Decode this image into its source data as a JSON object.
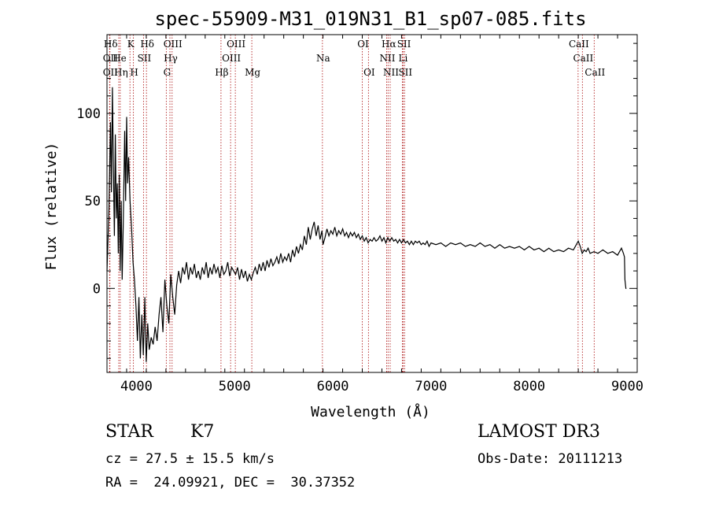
{
  "chart_data": {
    "type": "line",
    "title": "spec-55909-M31_019N31_B1_sp07-085.fits",
    "xlabel": "Wavelength (Å)",
    "ylabel": "Flux (relative)",
    "xlim": [
      3700,
      9100
    ],
    "ylim": [
      -48,
      145
    ],
    "x_ticks": [
      4000,
      5000,
      6000,
      7000,
      8000,
      9000
    ],
    "y_ticks": [
      0,
      50,
      100
    ],
    "grid": false,
    "series": [
      {
        "points": [
          [
            3700,
            10
          ],
          [
            3720,
            45
          ],
          [
            3735,
            95
          ],
          [
            3745,
            55
          ],
          [
            3755,
            115
          ],
          [
            3765,
            70
          ],
          [
            3775,
            30
          ],
          [
            3785,
            88
          ],
          [
            3795,
            40
          ],
          [
            3805,
            60
          ],
          [
            3815,
            20
          ],
          [
            3825,
            65
          ],
          [
            3835,
            10
          ],
          [
            3845,
            50
          ],
          [
            3855,
            5
          ],
          [
            3865,
            35
          ],
          [
            3880,
            90
          ],
          [
            3890,
            50
          ],
          [
            3900,
            98
          ],
          [
            3910,
            60
          ],
          [
            3920,
            75
          ],
          [
            3935,
            50
          ],
          [
            3950,
            35
          ],
          [
            3965,
            15
          ],
          [
            3980,
            5
          ],
          [
            3995,
            -10
          ],
          [
            4010,
            -30
          ],
          [
            4025,
            -5
          ],
          [
            4040,
            -40
          ],
          [
            4055,
            -15
          ],
          [
            4070,
            -38
          ],
          [
            4085,
            -5
          ],
          [
            4100,
            -42
          ],
          [
            4115,
            -20
          ],
          [
            4130,
            -35
          ],
          [
            4150,
            -28
          ],
          [
            4170,
            -32
          ],
          [
            4190,
            -22
          ],
          [
            4210,
            -30
          ],
          [
            4230,
            -15
          ],
          [
            4250,
            -5
          ],
          [
            4270,
            -25
          ],
          [
            4290,
            5
          ],
          [
            4310,
            -10
          ],
          [
            4330,
            -20
          ],
          [
            4350,
            8
          ],
          [
            4370,
            -5
          ],
          [
            4390,
            -15
          ],
          [
            4410,
            2
          ],
          [
            4430,
            10
          ],
          [
            4450,
            3
          ],
          [
            4470,
            12
          ],
          [
            4490,
            8
          ],
          [
            4510,
            15
          ],
          [
            4530,
            5
          ],
          [
            4550,
            12
          ],
          [
            4570,
            8
          ],
          [
            4590,
            14
          ],
          [
            4610,
            6
          ],
          [
            4630,
            10
          ],
          [
            4650,
            5
          ],
          [
            4670,
            12
          ],
          [
            4690,
            8
          ],
          [
            4710,
            15
          ],
          [
            4730,
            6
          ],
          [
            4750,
            12
          ],
          [
            4770,
            8
          ],
          [
            4790,
            14
          ],
          [
            4810,
            9
          ],
          [
            4830,
            12
          ],
          [
            4850,
            6
          ],
          [
            4870,
            13
          ],
          [
            4890,
            8
          ],
          [
            4910,
            10
          ],
          [
            4930,
            15
          ],
          [
            4950,
            7
          ],
          [
            4970,
            12
          ],
          [
            4990,
            10
          ],
          [
            5010,
            8
          ],
          [
            5030,
            12
          ],
          [
            5050,
            5
          ],
          [
            5070,
            11
          ],
          [
            5090,
            6
          ],
          [
            5110,
            10
          ],
          [
            5130,
            4
          ],
          [
            5150,
            8
          ],
          [
            5170,
            5
          ],
          [
            5190,
            9
          ],
          [
            5210,
            12
          ],
          [
            5230,
            8
          ],
          [
            5250,
            14
          ],
          [
            5270,
            10
          ],
          [
            5290,
            15
          ],
          [
            5310,
            10
          ],
          [
            5330,
            16
          ],
          [
            5350,
            12
          ],
          [
            5370,
            17
          ],
          [
            5390,
            13
          ],
          [
            5410,
            15
          ],
          [
            5430,
            18
          ],
          [
            5450,
            14
          ],
          [
            5470,
            20
          ],
          [
            5490,
            15
          ],
          [
            5510,
            18
          ],
          [
            5530,
            16
          ],
          [
            5550,
            20
          ],
          [
            5570,
            15
          ],
          [
            5590,
            22
          ],
          [
            5610,
            18
          ],
          [
            5630,
            24
          ],
          [
            5650,
            20
          ],
          [
            5670,
            25
          ],
          [
            5690,
            22
          ],
          [
            5710,
            30
          ],
          [
            5730,
            25
          ],
          [
            5750,
            35
          ],
          [
            5770,
            28
          ],
          [
            5790,
            34
          ],
          [
            5810,
            38
          ],
          [
            5830,
            30
          ],
          [
            5850,
            36
          ],
          [
            5870,
            28
          ],
          [
            5890,
            33
          ],
          [
            5900,
            25
          ],
          [
            5920,
            29
          ],
          [
            5940,
            34
          ],
          [
            5960,
            30
          ],
          [
            5980,
            33
          ],
          [
            6000,
            31
          ],
          [
            6020,
            35
          ],
          [
            6040,
            30
          ],
          [
            6060,
            33
          ],
          [
            6080,
            31
          ],
          [
            6100,
            34
          ],
          [
            6120,
            30
          ],
          [
            6140,
            32
          ],
          [
            6160,
            29
          ],
          [
            6180,
            32
          ],
          [
            6200,
            30
          ],
          [
            6220,
            32
          ],
          [
            6240,
            29
          ],
          [
            6260,
            31
          ],
          [
            6280,
            28
          ],
          [
            6300,
            30
          ],
          [
            6320,
            27
          ],
          [
            6340,
            29
          ],
          [
            6360,
            26
          ],
          [
            6380,
            28
          ],
          [
            6400,
            27
          ],
          [
            6420,
            29
          ],
          [
            6440,
            27
          ],
          [
            6460,
            28
          ],
          [
            6480,
            30
          ],
          [
            6500,
            27
          ],
          [
            6520,
            29
          ],
          [
            6540,
            26
          ],
          [
            6560,
            29
          ],
          [
            6580,
            27
          ],
          [
            6600,
            29
          ],
          [
            6620,
            27
          ],
          [
            6640,
            28
          ],
          [
            6660,
            26
          ],
          [
            6680,
            28
          ],
          [
            6700,
            26
          ],
          [
            6720,
            28
          ],
          [
            6740,
            26
          ],
          [
            6760,
            27
          ],
          [
            6780,
            25
          ],
          [
            6800,
            27
          ],
          [
            6820,
            25
          ],
          [
            6840,
            27
          ],
          [
            6860,
            26
          ],
          [
            6880,
            27
          ],
          [
            6900,
            25
          ],
          [
            6920,
            26
          ],
          [
            6940,
            25
          ],
          [
            6960,
            27
          ],
          [
            6980,
            24
          ],
          [
            7000,
            26
          ],
          [
            7050,
            25
          ],
          [
            7100,
            26
          ],
          [
            7150,
            24
          ],
          [
            7200,
            26
          ],
          [
            7250,
            25
          ],
          [
            7300,
            26
          ],
          [
            7350,
            24
          ],
          [
            7400,
            25
          ],
          [
            7450,
            24
          ],
          [
            7500,
            26
          ],
          [
            7550,
            24
          ],
          [
            7600,
            25
          ],
          [
            7650,
            23
          ],
          [
            7700,
            25
          ],
          [
            7750,
            23
          ],
          [
            7800,
            24
          ],
          [
            7850,
            23
          ],
          [
            7900,
            24
          ],
          [
            7950,
            22
          ],
          [
            8000,
            24
          ],
          [
            8050,
            22
          ],
          [
            8100,
            23
          ],
          [
            8150,
            21
          ],
          [
            8200,
            23
          ],
          [
            8250,
            21
          ],
          [
            8300,
            22
          ],
          [
            8350,
            21
          ],
          [
            8400,
            23
          ],
          [
            8450,
            22
          ],
          [
            8480,
            25
          ],
          [
            8500,
            27
          ],
          [
            8520,
            24
          ],
          [
            8540,
            20
          ],
          [
            8560,
            22
          ],
          [
            8580,
            21
          ],
          [
            8600,
            23
          ],
          [
            8620,
            20
          ],
          [
            8660,
            21
          ],
          [
            8700,
            20
          ],
          [
            8750,
            22
          ],
          [
            8800,
            20
          ],
          [
            8850,
            21
          ],
          [
            8900,
            19
          ],
          [
            8940,
            23
          ],
          [
            8960,
            20
          ],
          [
            8970,
            18
          ],
          [
            8975,
            5
          ],
          [
            8985,
            0
          ],
          [
            8990,
            0
          ]
        ]
      }
    ],
    "line_markers": [
      {
        "label": "Hδ",
        "wavelength": 3730,
        "row": 0
      },
      {
        "label": "OII",
        "wavelength": 3727,
        "row": 1
      },
      {
        "label": "OII",
        "wavelength": 3727,
        "row": 2
      },
      {
        "label": "He",
        "wavelength": 3820,
        "row": 1
      },
      {
        "label": "Hη",
        "wavelength": 3835,
        "row": 2
      },
      {
        "label": "K",
        "wavelength": 3934,
        "row": 0
      },
      {
        "label": "SII",
        "wavelength": 4072,
        "row": 1
      },
      {
        "label": "H",
        "wavelength": 3969,
        "row": 2
      },
      {
        "label": "Hδ",
        "wavelength": 4102,
        "row": 0
      },
      {
        "label": "OIII",
        "wavelength": 4363,
        "row": 0
      },
      {
        "label": "Hγ",
        "wavelength": 4341,
        "row": 1
      },
      {
        "label": "G",
        "wavelength": 4304,
        "row": 2
      },
      {
        "label": "OIII",
        "wavelength": 5007,
        "row": 0
      },
      {
        "label": "OIII",
        "wavelength": 4959,
        "row": 1
      },
      {
        "label": "Hβ",
        "wavelength": 4861,
        "row": 2
      },
      {
        "label": "Mg",
        "wavelength": 5175,
        "row": 2
      },
      {
        "label": "Na",
        "wavelength": 5894,
        "row": 1
      },
      {
        "label": "OI",
        "wavelength": 6300,
        "row": 0
      },
      {
        "label": "OI",
        "wavelength": 6363,
        "row": 2
      },
      {
        "label": "Hα",
        "wavelength": 6563,
        "row": 0
      },
      {
        "label": "NII",
        "wavelength": 6548,
        "row": 1
      },
      {
        "label": "NII",
        "wavelength": 6584,
        "row": 2
      },
      {
        "label": "SII",
        "wavelength": 6717,
        "row": 0
      },
      {
        "label": "Li",
        "wavelength": 6708,
        "row": 1
      },
      {
        "label": "SII",
        "wavelength": 6731,
        "row": 2
      },
      {
        "label": "CaII",
        "wavelength": 8498,
        "row": 0
      },
      {
        "label": "CaII",
        "wavelength": 8542,
        "row": 1
      },
      {
        "label": "CaII",
        "wavelength": 8662,
        "row": 2
      }
    ]
  },
  "info": {
    "object_type": "STAR",
    "subclass": "K7",
    "survey": "LAMOST DR3",
    "cz": "cz = 27.5 ± 15.5 km/s",
    "obs_date": "Obs-Date: 20111213",
    "radec": "RA =  24.09921, DEC =  30.37352"
  }
}
